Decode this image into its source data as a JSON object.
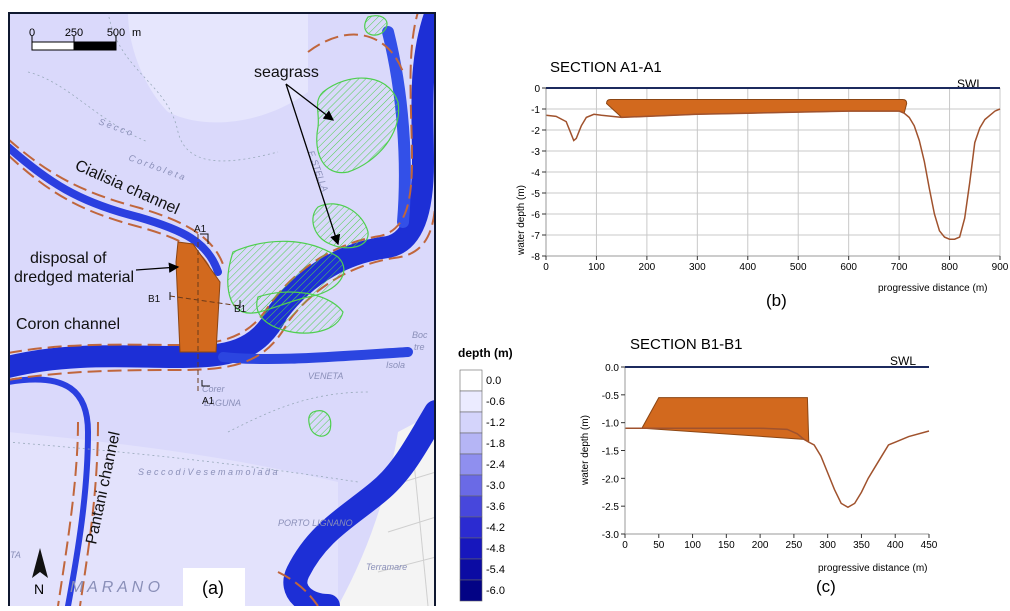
{
  "map": {
    "scalebar": {
      "ticks": [
        "0",
        "250",
        "500"
      ],
      "unit": "m"
    },
    "labels": {
      "seagrass": "seagrass",
      "cialisia": "Cialisia channel",
      "disposal_line1": "disposal of",
      "disposal_line2": "dredged material",
      "coron": "Coron channel",
      "pantani": "Pantani channel",
      "a1_top": "A1",
      "a1_bottom": "A1",
      "b1_left": "B1",
      "b1_right": "B1",
      "panel": "(a)",
      "north": "N"
    },
    "basemap_labels": {
      "corboleta": "C o r b o l e t a",
      "secco": "S e c c o",
      "f_stella": "F.   STELLA",
      "veneta": "VENETA",
      "laguna": "LAGUNA",
      "vesemamolada": "S e c c o   d i   V e s e m a m o l a d a",
      "porto_lignano": "PORTO LIGNANO",
      "terramare": "Terramare",
      "marano": "M  A  R  A  N  O",
      "boc": "Boc",
      "tre": "tre",
      "isola": "Isola",
      "corer": "Corer",
      "ta": "TA"
    },
    "colors": {
      "water": "#dad9fb",
      "channel": "#1e37d9",
      "bank": "#c0663c",
      "seagrass": "#4fcf4f",
      "disposal": "#d2691e"
    }
  },
  "legend": {
    "title": "depth (m)",
    "items": [
      {
        "label": "0.0",
        "color": "#ffffff"
      },
      {
        "label": "-0.6",
        "color": "#ebebff"
      },
      {
        "label": "-1.2",
        "color": "#d4d4fb"
      },
      {
        "label": "-1.8",
        "color": "#b5b5f5"
      },
      {
        "label": "-2.4",
        "color": "#8f8fef"
      },
      {
        "label": "-3.0",
        "color": "#6a6ae6"
      },
      {
        "label": "-3.6",
        "color": "#4747dc"
      },
      {
        "label": "-4.2",
        "color": "#2b2bd1"
      },
      {
        "label": "-4.8",
        "color": "#1717bd"
      },
      {
        "label": "-5.4",
        "color": "#0b0ba3"
      },
      {
        "label": "-6.0",
        "color": "#030385"
      }
    ]
  },
  "chart_data": [
    {
      "type": "area",
      "title": "SECTION A1-A1",
      "panel_label": "(b)",
      "xlabel": "progressive distance (m)",
      "ylabel": "water depth (m)",
      "xlim": [
        0,
        900
      ],
      "ylim": [
        -8,
        0
      ],
      "xticks": [
        0,
        100,
        200,
        300,
        400,
        500,
        600,
        700,
        800,
        900
      ],
      "yticks": [
        0,
        -1,
        -2,
        -3,
        -4,
        -5,
        -6,
        -7,
        -8
      ],
      "grid": true,
      "annotation": "SWL",
      "profile": {
        "x": [
          0,
          20,
          40,
          50,
          55,
          60,
          70,
          80,
          95,
          110,
          150,
          200,
          300,
          400,
          500,
          600,
          700,
          710,
          720,
          730,
          740,
          750,
          760,
          770,
          780,
          790,
          800,
          810,
          820,
          830,
          840,
          850,
          860,
          870,
          880,
          890,
          900
        ],
        "y": [
          -1.3,
          -1.35,
          -1.6,
          -2.2,
          -2.5,
          -2.4,
          -1.8,
          -1.4,
          -1.25,
          -1.3,
          -1.4,
          -1.35,
          -1.25,
          -1.2,
          -1.15,
          -1.1,
          -1.1,
          -1.2,
          -1.4,
          -1.8,
          -2.5,
          -3.5,
          -4.8,
          -6.0,
          -6.8,
          -7.1,
          -7.2,
          -7.2,
          -7.1,
          -6.2,
          -4.5,
          -2.6,
          -1.9,
          -1.5,
          -1.3,
          -1.1,
          -1.0
        ]
      },
      "fill_top": -0.55,
      "fill_x": [
        120,
        715
      ],
      "fill_color": "#d2691e",
      "line_color": "#a0522d"
    },
    {
      "type": "area",
      "title": "SECTION B1-B1",
      "panel_label": "(c)",
      "xlabel": "progressive distance (m)",
      "ylabel": "water depth (m)",
      "xlim": [
        0,
        450
      ],
      "ylim": [
        -3.0,
        0.0
      ],
      "xticks": [
        0,
        50,
        100,
        150,
        200,
        250,
        300,
        350,
        400,
        450
      ],
      "yticks": [
        "0.0",
        "-0.5",
        "-1.0",
        "-1.5",
        "-2.0",
        "-2.5",
        "-3.0"
      ],
      "grid": false,
      "annotation": "SWL",
      "profile": {
        "x": [
          0,
          20,
          25,
          100,
          200,
          240,
          255,
          265,
          272,
          280,
          290,
          300,
          310,
          320,
          330,
          340,
          350,
          360,
          370,
          380,
          390,
          400,
          420,
          450
        ],
        "y": [
          -1.1,
          -1.1,
          -1.1,
          -1.1,
          -1.1,
          -1.12,
          -1.2,
          -1.3,
          -1.35,
          -1.4,
          -1.6,
          -1.9,
          -2.2,
          -2.45,
          -2.52,
          -2.45,
          -2.25,
          -2.0,
          -1.8,
          -1.6,
          -1.4,
          -1.35,
          -1.25,
          -1.15
        ]
      },
      "platform": {
        "x": [
          25,
          50,
          270,
          272,
          265
        ],
        "y": [
          -1.1,
          -0.55,
          -0.55,
          -1.35,
          -1.3
        ]
      },
      "fill_color": "#d2691e",
      "line_color": "#a0522d"
    }
  ]
}
